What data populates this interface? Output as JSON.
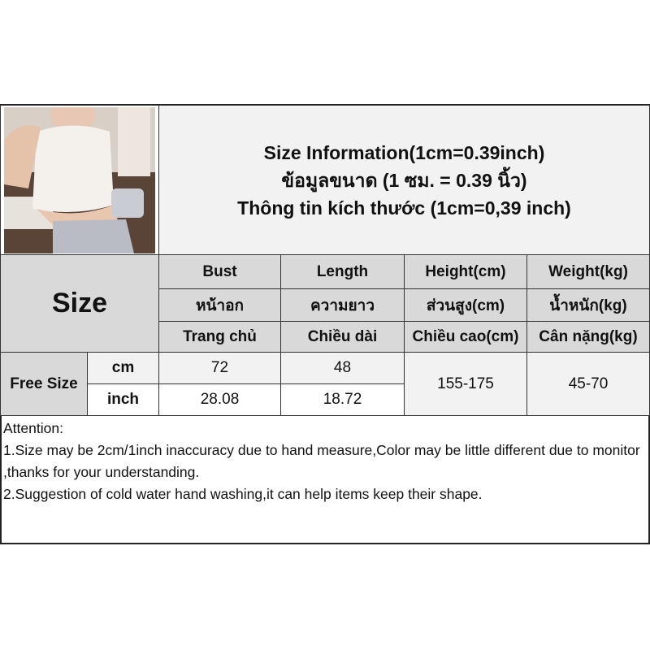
{
  "title_lines": [
    "Size Information(1cm=0.39inch)",
    "ข้อมูลขนาด (1 ซม. = 0.39 นิ้ว)",
    "Thông tin kích thước (1cm=0,39 inch)"
  ],
  "size_label": "Size",
  "columns": [
    {
      "en": "Bust",
      "th": "หน้าอก",
      "vi": "Trang chủ"
    },
    {
      "en": "Length",
      "th": "ความยาว",
      "vi": "Chiều dài"
    },
    {
      "en": "Height(cm)",
      "th": "ส่วนสูง(cm)",
      "vi": "Chiều cao(cm)"
    },
    {
      "en": "Weight(kg)",
      "th": "น้ำหนัก(kg)",
      "vi": "Cân nặng(kg)"
    }
  ],
  "rows": {
    "size_name": "Free Size",
    "cm": {
      "unit": "cm",
      "bust": "72",
      "length": "48"
    },
    "inch": {
      "unit": "inch",
      "bust": "28.08",
      "length": "18.72"
    },
    "height": "155-175",
    "weight": "45-70"
  },
  "attention": {
    "heading": "Attention:",
    "items": [
      "1.Size may be 2cm/1inch inaccuracy due to hand measure,Color may be little different due to monitor ,thanks for your understanding.",
      "2.Suggestion of cold water hand washing,it can help items keep their shape."
    ]
  },
  "colors": {
    "header": "#d9d9d9",
    "light_row": "#f2f2f2",
    "border": "#333333"
  }
}
